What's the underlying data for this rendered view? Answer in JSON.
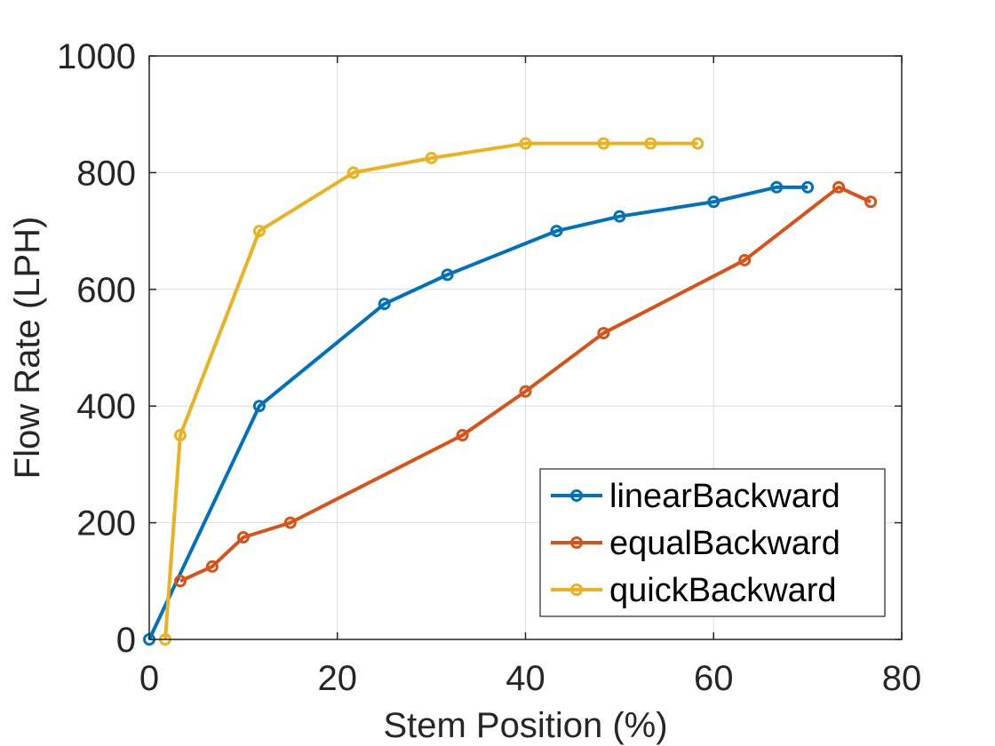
{
  "chart_data": {
    "type": "line",
    "xlabel": "Stem Position (%)",
    "ylabel": "Flow Rate (LPH)",
    "xlim": [
      0,
      80
    ],
    "ylim": [
      0,
      1000
    ],
    "xticks": [
      0,
      20,
      40,
      60,
      80
    ],
    "yticks": [
      0,
      200,
      400,
      600,
      800,
      1000
    ],
    "grid": true,
    "legend_position": "bottom-right",
    "marker": "circle",
    "series": [
      {
        "name": "linearBackward",
        "color": "#0072BD",
        "points": [
          [
            0,
            0
          ],
          [
            11.7,
            400
          ],
          [
            25,
            575
          ],
          [
            31.7,
            625
          ],
          [
            43.3,
            700
          ],
          [
            50,
            725
          ],
          [
            60,
            750
          ],
          [
            66.7,
            775
          ],
          [
            70,
            775
          ]
        ]
      },
      {
        "name": "equalBackward",
        "color": "#D95319",
        "points": [
          [
            3.3,
            100
          ],
          [
            6.7,
            125
          ],
          [
            10,
            175
          ],
          [
            15,
            200
          ],
          [
            33.3,
            350
          ],
          [
            40,
            425
          ],
          [
            48.3,
            525
          ],
          [
            63.3,
            650
          ],
          [
            73.3,
            775
          ],
          [
            76.7,
            750
          ]
        ]
      },
      {
        "name": "quickBackward",
        "color": "#EDB120",
        "points": [
          [
            1.7,
            0
          ],
          [
            3.3,
            350
          ],
          [
            11.7,
            700
          ],
          [
            21.7,
            800
          ],
          [
            30,
            825
          ],
          [
            40,
            850
          ],
          [
            48.3,
            850
          ],
          [
            53.3,
            850
          ],
          [
            58.3,
            850
          ]
        ]
      }
    ]
  }
}
